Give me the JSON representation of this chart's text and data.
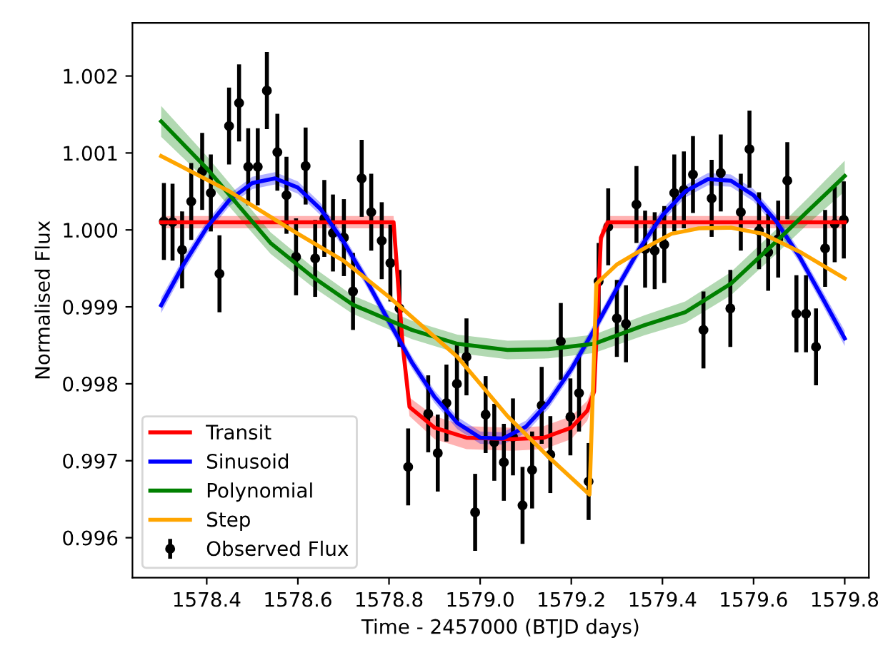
{
  "chart_data": {
    "type": "line",
    "xlabel": "Time - 2457000 (BTJD days)",
    "ylabel": "Normalised Flux",
    "xlim": [
      1578.237,
      1579.853
    ],
    "ylim": [
      0.99548,
      1.00269
    ],
    "xticks": [
      {
        "value": 1578.4,
        "label": "1578.4"
      },
      {
        "value": 1578.6,
        "label": "1578.6"
      },
      {
        "value": 1578.8,
        "label": "1578.8"
      },
      {
        "value": 1579.0,
        "label": "1579.0"
      },
      {
        "value": 1579.2,
        "label": "1579.2"
      },
      {
        "value": 1579.4,
        "label": "1579.4"
      },
      {
        "value": 1579.6,
        "label": "1579.6"
      },
      {
        "value": 1579.8,
        "label": "1579.8"
      }
    ],
    "yticks": [
      {
        "value": 0.996,
        "label": "0.996"
      },
      {
        "value": 0.997,
        "label": "0.997"
      },
      {
        "value": 0.998,
        "label": "0.998"
      },
      {
        "value": 0.999,
        "label": "0.999"
      },
      {
        "value": 1.0,
        "label": "1.000"
      },
      {
        "value": 1.001,
        "label": "1.001"
      },
      {
        "value": 1.002,
        "label": "1.002"
      }
    ],
    "grid": false,
    "legend": "bottom left",
    "series": [
      {
        "name": "Transit",
        "color": "#ff0000",
        "x": [
          1578.3,
          1578.81,
          1578.83,
          1578.845,
          1578.9,
          1578.97,
          1579.07,
          1579.14,
          1579.2,
          1579.235,
          1579.25,
          1579.265,
          1579.28,
          1579.8
        ],
        "values": [
          1.0001,
          1.0001,
          0.9985,
          0.9977,
          0.99743,
          0.9973,
          0.99728,
          0.9973,
          0.99743,
          0.99765,
          0.9979,
          0.9999,
          1.0001,
          1.0001
        ],
        "lower": [
          1.00002,
          1.00002,
          0.9984,
          0.99758,
          0.99728,
          0.99715,
          0.99713,
          0.99715,
          0.99728,
          0.99752,
          0.99778,
          0.9998,
          1.00002,
          1.00002
        ],
        "upper": [
          1.00018,
          1.00018,
          0.9986,
          0.99782,
          0.99758,
          0.99745,
          0.99743,
          0.99745,
          0.99758,
          0.99778,
          0.99802,
          1.0,
          1.00018,
          1.00018
        ]
      },
      {
        "name": "Sinusoid",
        "color": "#0000ff",
        "x": [
          1578.3,
          1578.35,
          1578.4,
          1578.45,
          1578.5,
          1578.55,
          1578.6,
          1578.65,
          1578.7,
          1578.75,
          1578.8,
          1578.85,
          1578.9,
          1578.95,
          1579.0,
          1579.05,
          1579.1,
          1579.15,
          1579.2,
          1579.25,
          1579.3,
          1579.35,
          1579.4,
          1579.45,
          1579.5,
          1579.55,
          1579.6,
          1579.65,
          1579.7,
          1579.75,
          1579.8
        ],
        "values": [
          0.99902,
          0.99956,
          1.00003,
          1.00039,
          1.00061,
          1.00067,
          1.00055,
          1.00027,
          0.99985,
          0.99935,
          0.99881,
          0.99828,
          0.99783,
          0.99749,
          0.9973,
          0.99729,
          0.99744,
          0.99776,
          0.99819,
          0.9987,
          0.99924,
          0.99976,
          1.00019,
          1.0005,
          1.00066,
          1.00064,
          1.00045,
          1.00011,
          0.99966,
          0.99913,
          0.99859
        ],
        "lower": [
          0.99892,
          0.99947,
          0.99995,
          1.00031,
          1.00053,
          1.00059,
          1.00047,
          1.00019,
          0.99977,
          0.99927,
          0.99873,
          0.9982,
          0.99775,
          0.99741,
          0.99722,
          0.99721,
          0.99736,
          0.99768,
          0.99811,
          0.99862,
          0.99916,
          0.99968,
          1.00011,
          1.00042,
          1.00058,
          1.00056,
          1.00037,
          1.00003,
          0.99958,
          0.99904,
          0.99849
        ],
        "upper": [
          0.99912,
          0.99965,
          1.00011,
          1.00047,
          1.00069,
          1.00075,
          1.00063,
          1.00035,
          0.99993,
          0.99943,
          0.99889,
          0.99836,
          0.99791,
          0.99757,
          0.99738,
          0.99737,
          0.99752,
          0.99784,
          0.99827,
          0.99878,
          0.99932,
          0.99984,
          1.00027,
          1.00058,
          1.00074,
          1.00072,
          1.00053,
          1.00019,
          0.99974,
          0.99922,
          0.99869
        ]
      },
      {
        "name": "Polynomial",
        "color": "#008000",
        "x": [
          1578.3,
          1578.4,
          1578.54,
          1578.63,
          1578.72,
          1578.85,
          1578.95,
          1579.06,
          1579.15,
          1579.25,
          1579.36,
          1579.45,
          1579.55,
          1579.65,
          1579.72,
          1579.8
        ],
        "values": [
          1.00141,
          1.0008,
          0.99983,
          0.9994,
          0.99903,
          0.9987,
          0.99852,
          0.99844,
          0.99845,
          0.99852,
          0.99876,
          0.99893,
          0.9993,
          0.99985,
          1.00025,
          1.0007
        ],
        "lower": [
          1.00121,
          1.00064,
          0.99969,
          0.99927,
          0.99891,
          0.99858,
          0.9984,
          0.99832,
          0.99833,
          0.9984,
          0.99863,
          0.99879,
          0.99915,
          0.99969,
          1.00008,
          1.0005
        ],
        "upper": [
          1.00161,
          1.00096,
          0.99997,
          0.99953,
          0.99915,
          0.99882,
          0.99864,
          0.99856,
          0.99857,
          0.99864,
          0.99889,
          0.99907,
          0.99945,
          1.00001,
          1.00042,
          1.0009
        ]
      },
      {
        "name": "Step",
        "color": "#ffa500",
        "x": [
          1578.3,
          1578.45,
          1578.6,
          1578.7,
          1578.8,
          1578.95,
          1579.06,
          1579.15,
          1579.24,
          1579.255,
          1579.3,
          1579.36,
          1579.42,
          1579.48,
          1579.55,
          1579.62,
          1579.7,
          1579.8
        ],
        "values": [
          1.00096,
          1.0005,
          0.99995,
          0.9996,
          0.99913,
          0.99835,
          0.99758,
          0.99705,
          0.99656,
          0.9993,
          0.99955,
          0.99976,
          0.99995,
          1.00002,
          1.00003,
          0.99995,
          0.99972,
          0.99937
        ]
      },
      {
        "name": "Observed Flux",
        "type": "scatter",
        "color": "#000000",
        "x": [
          1578.306,
          1578.325,
          1578.346,
          1578.366,
          1578.39,
          1578.409,
          1578.428,
          1578.449,
          1578.471,
          1578.491,
          1578.512,
          1578.532,
          1578.555,
          1578.575,
          1578.596,
          1578.617,
          1578.638,
          1578.658,
          1578.677,
          1578.701,
          1578.721,
          1578.74,
          1578.761,
          1578.784,
          1578.803,
          1578.823,
          1578.842,
          1578.886,
          1578.907,
          1578.926,
          1578.949,
          1578.97,
          1578.989,
          1579.012,
          1579.031,
          1579.052,
          1579.072,
          1579.093,
          1579.114,
          1579.135,
          1579.154,
          1579.177,
          1579.198,
          1579.217,
          1579.238,
          1579.26,
          1579.281,
          1579.3,
          1579.32,
          1579.343,
          1579.362,
          1579.383,
          1579.404,
          1579.426,
          1579.447,
          1579.467,
          1579.49,
          1579.508,
          1579.528,
          1579.549,
          1579.572,
          1579.591,
          1579.612,
          1579.632,
          1579.654,
          1579.674,
          1579.694,
          1579.715,
          1579.737,
          1579.757,
          1579.778,
          1579.798
        ],
        "values": [
          1.00011,
          1.0001,
          0.99974,
          1.00037,
          1.00076,
          1.00048,
          0.99943,
          1.00135,
          1.00165,
          1.00082,
          1.00082,
          1.00181,
          1.00101,
          1.00045,
          0.99965,
          1.00083,
          0.99963,
          1.00015,
          0.99996,
          0.9999,
          0.9992,
          1.00067,
          1.00023,
          0.99986,
          0.99957,
          0.99898,
          0.99692,
          0.99761,
          0.9971,
          0.99775,
          0.998,
          0.99835,
          0.99633,
          0.9976,
          0.99724,
          0.99698,
          0.99731,
          0.99642,
          0.99688,
          0.99772,
          0.99708,
          0.99855,
          0.99757,
          0.99788,
          0.99673,
          0.99933,
          1.00004,
          0.99885,
          0.99878,
          1.00033,
          0.99975,
          0.99973,
          0.99981,
          1.00048,
          1.00052,
          1.00072,
          0.9987,
          1.00041,
          1.00074,
          0.99898,
          1.00023,
          1.00105,
          0.99999,
          0.99971,
          0.99988,
          1.00064,
          0.99891,
          0.99891,
          0.99848,
          0.99976,
          1.00008,
          1.00013
        ],
        "errors": [
          0.0005,
          0.0005,
          0.0005,
          0.0005,
          0.0005,
          0.0005,
          0.0005,
          0.0005,
          0.0005,
          0.0005,
          0.0005,
          0.0005,
          0.0005,
          0.0005,
          0.0005,
          0.0005,
          0.0005,
          0.0005,
          0.0005,
          0.0005,
          0.0005,
          0.0005,
          0.0005,
          0.0005,
          0.0005,
          0.0005,
          0.0005,
          0.0005,
          0.0005,
          0.0005,
          0.0005,
          0.0005,
          0.0005,
          0.0005,
          0.0005,
          0.0005,
          0.0005,
          0.0005,
          0.0005,
          0.0005,
          0.0005,
          0.0005,
          0.0005,
          0.0005,
          0.0005,
          0.0005,
          0.0005,
          0.0005,
          0.0005,
          0.0005,
          0.0005,
          0.0005,
          0.0005,
          0.0005,
          0.0005,
          0.0005,
          0.0005,
          0.0005,
          0.0005,
          0.0005,
          0.0005,
          0.0005,
          0.0005,
          0.0005,
          0.0005,
          0.0005,
          0.0005,
          0.0005,
          0.0005,
          0.0005,
          0.0005,
          0.0005
        ],
        "marker": "circle"
      }
    ]
  }
}
